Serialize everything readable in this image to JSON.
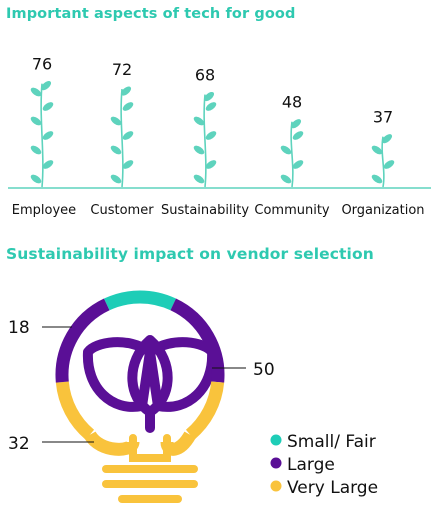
{
  "chart_data": [
    {
      "type": "bar",
      "title": "Important aspects of tech for good",
      "categories": [
        "Employee",
        "Customer",
        "Sustainability",
        "Community",
        "Organization"
      ],
      "values": [
        76,
        72,
        68,
        48,
        37
      ],
      "colors": {
        "leaf": "#5ed3bd",
        "stem": "#5ed3bd",
        "baseline": "#5ed3bd"
      }
    },
    {
      "type": "pie",
      "title": "Sustainability impact on vendor selection",
      "categories": [
        "Small/ Fair",
        "Large",
        "Very Large"
      ],
      "values": [
        18,
        50,
        32
      ],
      "colors": [
        "#1ecdb7",
        "#5a0f96",
        "#f9c33c"
      ],
      "legend": "bottom-right"
    }
  ]
}
